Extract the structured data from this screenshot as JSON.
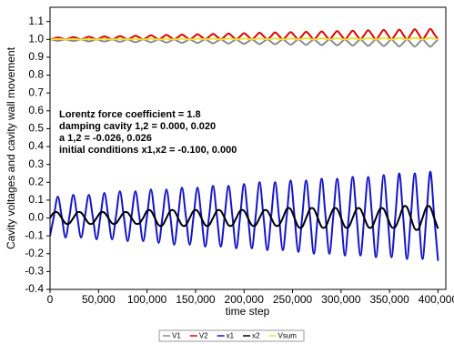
{
  "chart_data": {
    "type": "line",
    "xlabel": "time step",
    "ylabel": "Cavity voltages and cavity wall movement",
    "annotations": [
      "Lorentz force coefficient = 1.8",
      "damping cavity 1,2 =   0.000,   0.020",
      "a 1,2 =  -0.026,   0.026",
      "initial conditions x1,x2 =  -0.100,   0.000"
    ],
    "xlim": [
      0,
      408000
    ],
    "xticks": [
      0,
      {
        "value": 50000,
        "label": "50,000"
      },
      {
        "value": 100000,
        "label": "100,000"
      },
      {
        "value": 150000,
        "label": "150,000"
      },
      {
        "value": 200000,
        "label": "200,000"
      },
      {
        "value": 250000,
        "label": "250,000"
      },
      {
        "value": 300000,
        "label": "300,000"
      },
      {
        "value": 350000,
        "label": "350,000"
      },
      {
        "value": 400000,
        "label": "400,000"
      }
    ],
    "ylim": [
      -0.4,
      1.18
    ],
    "yticks": [
      -0.4,
      -0.3,
      -0.2,
      -0.1,
      {
        "value": 0,
        "label": "0.0"
      },
      0.1,
      0.2,
      0.3,
      0.4,
      0.5,
      0.6,
      0.7,
      0.8,
      0.9,
      {
        "value": 1,
        "label": "1.0"
      },
      1.1
    ],
    "grid": false,
    "legend": "bottom",
    "x": [
      0,
      4000,
      8000,
      12000,
      16000,
      20000,
      24000,
      28000,
      32000,
      36000,
      40000,
      44000,
      48000,
      52000,
      56000,
      60000,
      64000,
      68000,
      72000,
      76000,
      80000,
      84000,
      88000,
      92000,
      96000,
      100000,
      104000,
      108000,
      112000,
      116000,
      120000,
      124000,
      128000,
      132000,
      136000,
      140000,
      144000,
      148000,
      152000,
      156000,
      160000,
      164000,
      168000,
      172000,
      176000,
      180000,
      184000,
      188000,
      192000,
      196000,
      200000,
      204000,
      208000,
      212000,
      216000,
      220000,
      224000,
      228000,
      232000,
      236000,
      240000,
      244000,
      248000,
      252000,
      256000,
      260000,
      264000,
      268000,
      272000,
      276000,
      280000,
      284000,
      288000,
      292000,
      296000,
      300000,
      304000,
      308000,
      312000,
      316000,
      320000,
      324000,
      328000,
      332000,
      336000,
      340000,
      344000,
      348000,
      352000,
      356000,
      360000,
      364000,
      368000,
      372000,
      376000,
      380000,
      384000,
      388000,
      392000,
      396000,
      400000
    ],
    "series": [
      {
        "name": "V1",
        "color": "#8c8c8c",
        "values": [
          1,
          0.996,
          0.992,
          0.996,
          1,
          0.995,
          0.991,
          0.995,
          1,
          0.994,
          0.989,
          0.994,
          1,
          0.994,
          0.988,
          0.994,
          1,
          0.993,
          0.987,
          0.993,
          1,
          0.992,
          0.985,
          0.992,
          1,
          0.992,
          0.984,
          0.992,
          1,
          0.991,
          0.982,
          0.991,
          1,
          0.99,
          0.981,
          0.99,
          1,
          0.99,
          0.98,
          0.99,
          1,
          0.989,
          0.978,
          0.989,
          1,
          0.988,
          0.977,
          0.988,
          1,
          0.987,
          0.975,
          0.987,
          1,
          0.987,
          0.974,
          0.987,
          1,
          0.986,
          0.973,
          0.986,
          1,
          0.985,
          0.971,
          0.985,
          1,
          0.985,
          0.97,
          0.985,
          1,
          0.984,
          0.968,
          0.984,
          1,
          0.983,
          0.967,
          0.983,
          1,
          0.983,
          0.966,
          0.983,
          1,
          0.982,
          0.964,
          0.982,
          1,
          0.981,
          0.963,
          0.981,
          1,
          0.98,
          0.961,
          0.98,
          1,
          0.98,
          0.96,
          0.98,
          1,
          0.979,
          0.959,
          0.979,
          1
        ]
      },
      {
        "name": "V2",
        "color": "#e00000",
        "values": [
          1,
          1.005,
          1.011,
          1.006,
          1,
          1.006,
          1.013,
          1.007,
          1,
          1.007,
          1.015,
          1.008,
          1,
          1.008,
          1.017,
          1.009,
          1,
          1.009,
          1.019,
          1.01,
          1,
          1.01,
          1.021,
          1.011,
          1,
          1.011,
          1.023,
          1.012,
          1,
          1.012,
          1.025,
          1.013,
          1,
          1.013,
          1.027,
          1.014,
          1,
          1.014,
          1.029,
          1.015,
          1,
          1.015,
          1.031,
          1.016,
          1,
          1.016,
          1.033,
          1.017,
          1,
          1.017,
          1.035,
          1.018,
          1,
          1.018,
          1.037,
          1.019,
          1,
          1.019,
          1.039,
          1.02,
          1,
          1.02,
          1.041,
          1.021,
          1,
          1.021,
          1.043,
          1.022,
          1,
          1.022,
          1.045,
          1.023,
          1,
          1.023,
          1.047,
          1.024,
          1,
          1.024,
          1.049,
          1.025,
          1,
          1.025,
          1.051,
          1.026,
          1,
          1.026,
          1.053,
          1.027,
          1,
          1.027,
          1.055,
          1.028,
          1,
          1.028,
          1.057,
          1.029,
          1,
          1.029,
          1.059,
          1.03,
          1
        ]
      },
      {
        "name": "x1",
        "color": "#1414c8",
        "values": [
          -0.1,
          0.01,
          0.12,
          0.01,
          -0.11,
          0.01,
          0.13,
          0.01,
          -0.11,
          0.01,
          0.13,
          0.01,
          -0.12,
          0.01,
          0.14,
          0.01,
          -0.12,
          0.01,
          0.15,
          0.01,
          -0.13,
          0.01,
          0.15,
          0.01,
          -0.13,
          0.01,
          0.16,
          0.01,
          -0.14,
          0.01,
          0.16,
          0.01,
          -0.15,
          0.01,
          0.17,
          0.01,
          -0.15,
          0.01,
          0.17,
          0.01,
          -0.16,
          0.01,
          0.18,
          0.01,
          -0.16,
          0.01,
          0.18,
          0.01,
          -0.17,
          0.01,
          0.19,
          0.01,
          -0.17,
          0.01,
          0.2,
          0.01,
          -0.18,
          0.01,
          0.2,
          0.01,
          -0.18,
          0.01,
          0.21,
          0.01,
          -0.19,
          0.01,
          0.21,
          0.01,
          -0.2,
          0.01,
          0.22,
          0.01,
          -0.2,
          0.01,
          0.22,
          0.01,
          -0.21,
          0.01,
          0.23,
          0.01,
          -0.21,
          0.01,
          0.23,
          0.01,
          -0.22,
          0.01,
          0.24,
          0.01,
          -0.22,
          0.01,
          0.25,
          0.01,
          -0.23,
          0.01,
          0.25,
          0.01,
          -0.23,
          0.01,
          0.26,
          0.01,
          -0.24
        ]
      },
      {
        "name": "x2",
        "color": "#000000",
        "values": [
          0,
          0.03,
          0.03,
          0,
          -0.03,
          -0.03,
          0,
          0.03,
          0.03,
          0,
          -0.03,
          -0.03,
          0,
          0.03,
          0.03,
          0,
          -0.03,
          -0.03,
          0,
          0.03,
          0.03,
          0,
          -0.03,
          -0.03,
          0,
          0.04,
          0.04,
          0,
          -0.04,
          -0.04,
          0,
          0.04,
          0.04,
          0,
          -0.04,
          -0.04,
          0,
          0.04,
          0.04,
          0,
          -0.04,
          -0.04,
          0,
          0.04,
          0.04,
          0,
          -0.04,
          -0.04,
          0,
          0.04,
          0.04,
          0,
          -0.04,
          -0.04,
          0,
          0.04,
          0.04,
          0,
          -0.04,
          -0.04,
          0,
          0.05,
          0.05,
          0,
          -0.05,
          -0.05,
          0,
          0.05,
          0.05,
          0,
          -0.05,
          -0.05,
          0,
          0.05,
          0.05,
          0,
          -0.05,
          -0.05,
          0,
          0.05,
          0.05,
          0,
          -0.05,
          -0.05,
          0,
          0.05,
          0.05,
          0,
          -0.05,
          -0.05,
          0,
          0.06,
          0.06,
          0,
          -0.06,
          -0.06,
          0,
          0.06,
          0.06,
          0,
          -0.06
        ]
      },
      {
        "name": "Vsum",
        "color": "#e8e23c",
        "values": [
          1,
          1.001,
          1.002,
          1.001,
          1,
          1.001,
          1.002,
          1.001,
          1,
          1.001,
          1.002,
          1.001,
          1,
          1.001,
          1.003,
          1.001,
          1,
          1.001,
          1.003,
          1.001,
          1,
          1.001,
          1.003,
          1.001,
          1,
          1.001,
          1.004,
          1.001,
          1,
          1.001,
          1.004,
          1.001,
          1,
          1.002,
          1.004,
          1.002,
          1,
          1.002,
          1.004,
          1.002,
          1,
          1.002,
          1.005,
          1.002,
          1,
          1.002,
          1.005,
          1.002,
          1,
          1.002,
          1.005,
          1.002,
          1,
          1.002,
          1.006,
          1.002,
          1,
          1.002,
          1.006,
          1.002,
          1,
          1.002,
          1.006,
          1.002,
          1,
          1.003,
          1.007,
          1.003,
          1,
          1.003,
          1.007,
          1.003,
          1,
          1.003,
          1.007,
          1.003,
          1,
          1.003,
          1.007,
          1.003,
          1,
          1.003,
          1.008,
          1.003,
          1,
          1.003,
          1.008,
          1.003,
          1,
          1.003,
          1.008,
          1.003,
          1,
          1.004,
          1.009,
          1.004,
          1,
          1.004,
          1.009,
          1.004,
          1
        ]
      }
    ]
  }
}
